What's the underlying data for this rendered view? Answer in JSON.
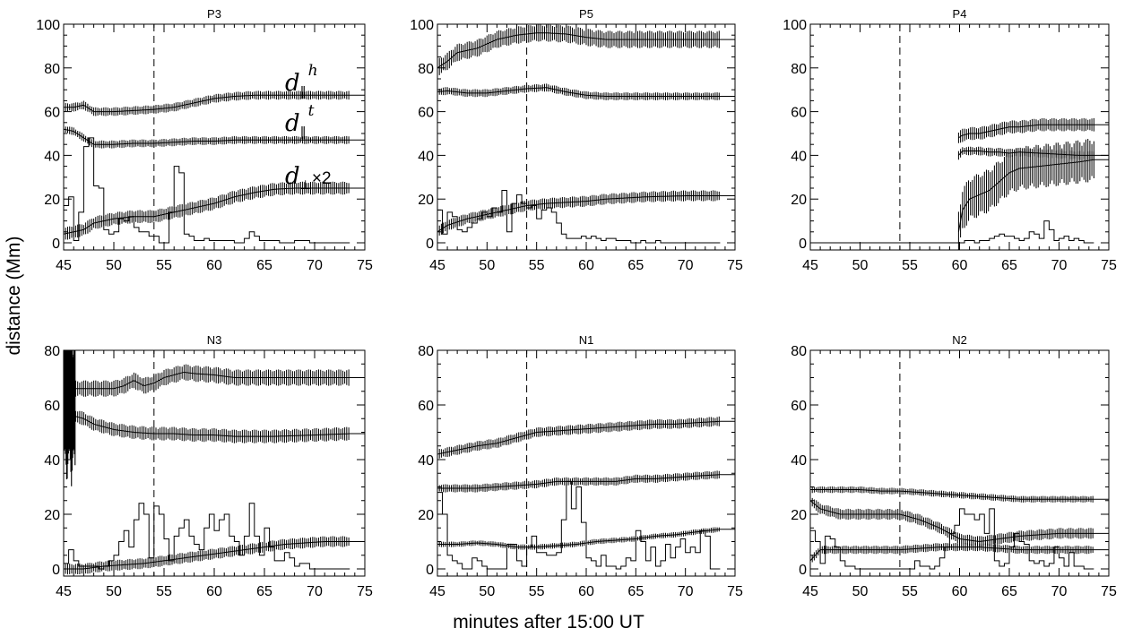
{
  "figure": {
    "ylabel": "distance (Mm)",
    "xlabel": "minutes after 15:00 UT"
  },
  "annotations": {
    "d_head": {
      "base": "d",
      "sub": "‖",
      "sup": "h"
    },
    "d_tail": {
      "base": "d",
      "sub": "‖",
      "sup": "t"
    },
    "d_perp": {
      "base": "d",
      "sub": "⊥",
      "suffix": "×2"
    }
  },
  "chart_data": [
    {
      "type": "line",
      "title": "P3",
      "xlim": [
        45,
        75
      ],
      "ylim": [
        0,
        100
      ],
      "xticks": [
        45,
        50,
        55,
        60,
        65,
        70,
        75
      ],
      "yticks": [
        0,
        20,
        40,
        60,
        80,
        100
      ],
      "vline_x": 54,
      "series": [
        {
          "x": [
            45,
            46,
            47,
            48,
            50,
            52,
            54,
            56,
            58,
            60,
            62,
            64,
            66,
            70,
            73.5
          ],
          "y": [
            62,
            62,
            63,
            60,
            60,
            60.5,
            61,
            62,
            64,
            66,
            67,
            67.5,
            67.5,
            67.5,
            67.5
          ],
          "err": 2
        },
        {
          "x": [
            45,
            46,
            47,
            48,
            50,
            52,
            54,
            56,
            58,
            60,
            62,
            64,
            66,
            70,
            73.5
          ],
          "y": [
            52,
            51,
            48,
            45,
            45,
            45.5,
            45.5,
            46,
            46.5,
            46.5,
            47,
            47,
            47,
            47,
            47
          ],
          "err": 1.8
        },
        {
          "x": [
            45,
            46,
            47,
            48,
            50,
            52,
            54,
            56,
            58,
            60,
            62,
            64,
            66,
            68,
            70,
            73.5
          ],
          "y": [
            4,
            5,
            6,
            9,
            11,
            12,
            12,
            14,
            16,
            18,
            21,
            23,
            24.5,
            25,
            25,
            25
          ],
          "err": 3
        }
      ],
      "histogram": {
        "x0": 45,
        "dx": 0.5,
        "counts": [
          17,
          21,
          1,
          14,
          44,
          48,
          26,
          25,
          6,
          4,
          5,
          11,
          10,
          12,
          7,
          5,
          5,
          3,
          3,
          0,
          0,
          14,
          35,
          32,
          4,
          3,
          1,
          1,
          2,
          1,
          1,
          1,
          1,
          1,
          0,
          0,
          2,
          5,
          3,
          1,
          1,
          1,
          1,
          0,
          0,
          0,
          1,
          1,
          1,
          0,
          0,
          0,
          0,
          0,
          0,
          0,
          0
        ]
      }
    },
    {
      "type": "line",
      "title": "P5",
      "xlim": [
        45,
        75
      ],
      "ylim": [
        0,
        100
      ],
      "xticks": [
        45,
        50,
        55,
        60,
        65,
        70,
        75
      ],
      "yticks": [
        0,
        20,
        40,
        60,
        80,
        100
      ],
      "vline_x": 54,
      "series": [
        {
          "x": [
            45,
            46,
            47,
            49,
            51,
            53,
            55,
            56,
            58,
            60,
            62,
            64,
            66,
            70,
            73.5
          ],
          "y": [
            80,
            83,
            87,
            89,
            93,
            95,
            96,
            96,
            95.5,
            94,
            93,
            93,
            93,
            93,
            93
          ],
          "err": 4
        },
        {
          "x": [
            45,
            46,
            48,
            50,
            52,
            54,
            56,
            58,
            60,
            62,
            64,
            66,
            70,
            73.5
          ],
          "y": [
            69,
            69.5,
            68.5,
            68.5,
            69.5,
            70.5,
            71,
            69,
            67.5,
            67,
            67,
            67,
            67,
            67
          ],
          "err": 1.8
        },
        {
          "x": [
            45,
            46,
            48,
            50,
            52,
            54,
            56,
            58,
            60,
            62,
            64,
            66,
            70,
            73.5
          ],
          "y": [
            5,
            8,
            11,
            13,
            15,
            17,
            18,
            18.5,
            19,
            20,
            20.5,
            21,
            21.5,
            21.5
          ],
          "err": 2.5
        }
      ],
      "histogram": {
        "x0": 45,
        "dx": 0.5,
        "counts": [
          15,
          4,
          14,
          12,
          6,
          5,
          7,
          9,
          11,
          14,
          12,
          16,
          14,
          24,
          5,
          18,
          22,
          18,
          16,
          17,
          11,
          15,
          16,
          14,
          9,
          4,
          2,
          2,
          2,
          3,
          2,
          3,
          2,
          1,
          2,
          2,
          1,
          1,
          1,
          0,
          0,
          1,
          0,
          0,
          1,
          0,
          0,
          0,
          0,
          0,
          0,
          0,
          0,
          0,
          0,
          0,
          0
        ]
      }
    },
    {
      "type": "line",
      "title": "P4",
      "xlim": [
        45,
        75
      ],
      "ylim": [
        0,
        100
      ],
      "xticks": [
        45,
        50,
        55,
        60,
        65,
        70,
        75
      ],
      "yticks": [
        0,
        20,
        40,
        60,
        80,
        100
      ],
      "vline_x": 54,
      "series": [
        {
          "x": [
            59.9,
            60.2,
            61,
            62,
            63,
            64,
            65,
            66,
            68,
            70,
            72,
            73.5
          ],
          "y": [
            48,
            49,
            50,
            50,
            51,
            52,
            53,
            53,
            54,
            54,
            54,
            54
          ],
          "err": 3
        },
        {
          "x": [
            59.9,
            60.3,
            61,
            62,
            63,
            64,
            65,
            66,
            68,
            70,
            72,
            73.5
          ],
          "y": [
            40,
            42,
            42,
            42,
            41.5,
            41.5,
            41,
            41.5,
            41,
            40.5,
            40,
            40
          ],
          "err": 2
        },
        {
          "x": [
            59.9,
            60.3,
            61,
            62,
            63,
            64,
            65,
            66,
            68,
            70,
            72,
            73.5
          ],
          "y": [
            5,
            15,
            20,
            22,
            24,
            28,
            32,
            34,
            35,
            36,
            37,
            38
          ],
          "err": 10
        }
      ],
      "histogram": {
        "x0": 45,
        "dx": 0.5,
        "counts": [
          0,
          0,
          0,
          0,
          0,
          0,
          0,
          0,
          0,
          0,
          0,
          0,
          0,
          0,
          0,
          0,
          0,
          0,
          0,
          0,
          0,
          0,
          0,
          0,
          0,
          0,
          0,
          0,
          0,
          0,
          0,
          1,
          1,
          0,
          1,
          1,
          2,
          3,
          4,
          3,
          3,
          2,
          1,
          2,
          5,
          4,
          2,
          10,
          6,
          1,
          2,
          3,
          1,
          2,
          1,
          0,
          0
        ]
      }
    },
    {
      "type": "line",
      "title": "N3",
      "xlim": [
        45,
        75
      ],
      "ylim": [
        0,
        80
      ],
      "xticks": [
        45,
        50,
        55,
        60,
        65,
        70,
        75
      ],
      "yticks": [
        0,
        20,
        40,
        60,
        80
      ],
      "vline_x": 54,
      "series": [
        {
          "x": [
            45,
            45.5,
            46,
            47,
            48,
            50,
            51,
            52,
            53,
            54,
            55,
            56,
            57,
            58,
            60,
            62,
            64,
            66,
            70,
            73.5
          ],
          "y": [
            65,
            68,
            66,
            66,
            66,
            66,
            67,
            69,
            67,
            68,
            70,
            71,
            72,
            71.5,
            71,
            70,
            70,
            70,
            70,
            70
          ],
          "err": 3
        },
        {
          "x": [
            45,
            45.5,
            46,
            47,
            48,
            50,
            52,
            54,
            56,
            58,
            60,
            62,
            64,
            66,
            70,
            73.5
          ],
          "y": [
            50,
            55,
            56,
            55,
            53,
            51,
            50,
            49.5,
            49.5,
            49,
            49,
            48.5,
            48.5,
            48.5,
            49,
            49.5
          ],
          "err": 2.5
        },
        {
          "x": [
            45,
            47,
            49,
            51,
            53,
            55,
            57,
            59,
            61,
            63,
            65,
            67,
            69,
            71,
            73.5
          ],
          "y": [
            0,
            0,
            1,
            1.5,
            2,
            3,
            4,
            5,
            6,
            7,
            8,
            9,
            9.5,
            10,
            10
          ],
          "err": 2
        }
      ],
      "histogram": {
        "x0": 45,
        "dx": 0.5,
        "counts": [
          2,
          7,
          3,
          1,
          1,
          1,
          1,
          0,
          1,
          3,
          5,
          10,
          14,
          8,
          18,
          24,
          20,
          4,
          23,
          20,
          11,
          3,
          12,
          15,
          18,
          12,
          9,
          7,
          15,
          20,
          14,
          18,
          20,
          12,
          10,
          5,
          12,
          24,
          12,
          5,
          15,
          8,
          3,
          3,
          6,
          4,
          1,
          2,
          2,
          0,
          0,
          0,
          0,
          0,
          0,
          0,
          0
        ]
      },
      "spike": {
        "x0": 45,
        "x1": 46.2,
        "ymin": 30,
        "ymax": 91
      }
    },
    {
      "type": "line",
      "title": "N1",
      "xlim": [
        45,
        75
      ],
      "ylim": [
        0,
        80
      ],
      "xticks": [
        45,
        50,
        55,
        60,
        65,
        70,
        75
      ],
      "yticks": [
        0,
        20,
        40,
        60,
        80
      ],
      "vline_x": 54,
      "series": [
        {
          "x": [
            45,
            47,
            49,
            51,
            53,
            55,
            57,
            59,
            61,
            63,
            65,
            67,
            69,
            71,
            73.5
          ],
          "y": [
            42,
            43.5,
            45,
            46,
            48,
            50,
            50.5,
            51,
            51.5,
            52,
            52.5,
            53,
            53,
            53.5,
            54
          ],
          "err": 1.8
        },
        {
          "x": [
            45,
            47,
            49,
            51,
            53,
            55,
            57,
            59,
            61,
            63,
            65,
            67,
            69,
            71,
            73.5
          ],
          "y": [
            29.5,
            29.5,
            29.5,
            30,
            30.5,
            31,
            32,
            32,
            32,
            32,
            33,
            33,
            33.5,
            34,
            34.5
          ],
          "err": 1.5
        },
        {
          "x": [
            45,
            47,
            49,
            51,
            53,
            55,
            57,
            59,
            61,
            63,
            65,
            67,
            69,
            71,
            73.5
          ],
          "y": [
            9,
            9,
            9.5,
            9,
            8,
            8,
            8.5,
            9,
            10,
            10.5,
            11,
            12,
            12.5,
            13.5,
            14.5
          ],
          "err": 1
        }
      ],
      "histogram": {
        "x0": 45,
        "dx": 0.5,
        "counts": [
          28,
          20,
          5,
          3,
          2,
          0,
          0,
          4,
          3,
          1,
          0,
          0,
          0,
          0,
          9,
          9,
          3,
          1,
          8,
          12,
          6,
          6,
          5,
          5,
          6,
          18,
          32,
          22,
          30,
          17,
          4,
          3,
          1,
          5,
          1,
          1,
          0,
          1,
          4,
          3,
          14,
          10,
          3,
          8,
          1,
          3,
          9,
          4,
          8,
          11,
          6,
          8,
          6,
          14,
          12,
          0,
          0
        ]
      }
    },
    {
      "type": "line",
      "title": "N2",
      "xlim": [
        45,
        75
      ],
      "ylim": [
        0,
        80
      ],
      "xticks": [
        45,
        50,
        55,
        60,
        65,
        70,
        75
      ],
      "yticks": [
        0,
        20,
        40,
        60,
        80
      ],
      "vline_x": 54,
      "series": [
        {
          "x": [
            45,
            46,
            48,
            50,
            52,
            54,
            56,
            58,
            60,
            62,
            64,
            66,
            70,
            73.5
          ],
          "y": [
            29,
            29,
            29,
            29,
            28.5,
            28.5,
            28,
            27.5,
            27,
            26.5,
            26,
            25.5,
            25.5,
            25.5
          ],
          "err": 1.2
        },
        {
          "x": [
            45,
            46,
            47,
            48,
            50,
            52,
            54,
            56,
            58,
            60,
            62,
            64,
            66,
            70,
            73.5
          ],
          "y": [
            25,
            22,
            21,
            20,
            20,
            20,
            20,
            18,
            15,
            11,
            10,
            11,
            12,
            13,
            13
          ],
          "err": 2
        },
        {
          "x": [
            45,
            45.5,
            46,
            47,
            48,
            50,
            52,
            54,
            56,
            58,
            60,
            62,
            64,
            66,
            70,
            73.5
          ],
          "y": [
            3,
            5,
            7,
            7,
            7,
            7,
            7,
            7,
            7.5,
            8,
            8,
            8,
            7.5,
            7,
            7,
            7
          ],
          "err": 1.5
        }
      ],
      "histogram": {
        "x0": 45,
        "dx": 0.5,
        "counts": [
          14,
          10,
          2,
          12,
          11,
          8,
          3,
          1,
          1,
          0,
          0,
          0,
          0,
          0,
          0,
          0,
          0,
          0,
          0,
          0,
          0,
          3,
          1,
          1,
          0,
          1,
          4,
          8,
          13,
          16,
          22,
          20,
          20,
          18,
          20,
          13,
          22,
          3,
          1,
          2,
          8,
          13,
          10,
          9,
          3,
          2,
          3,
          1,
          2,
          8,
          4,
          1,
          6,
          1,
          1,
          0,
          0
        ]
      }
    }
  ]
}
